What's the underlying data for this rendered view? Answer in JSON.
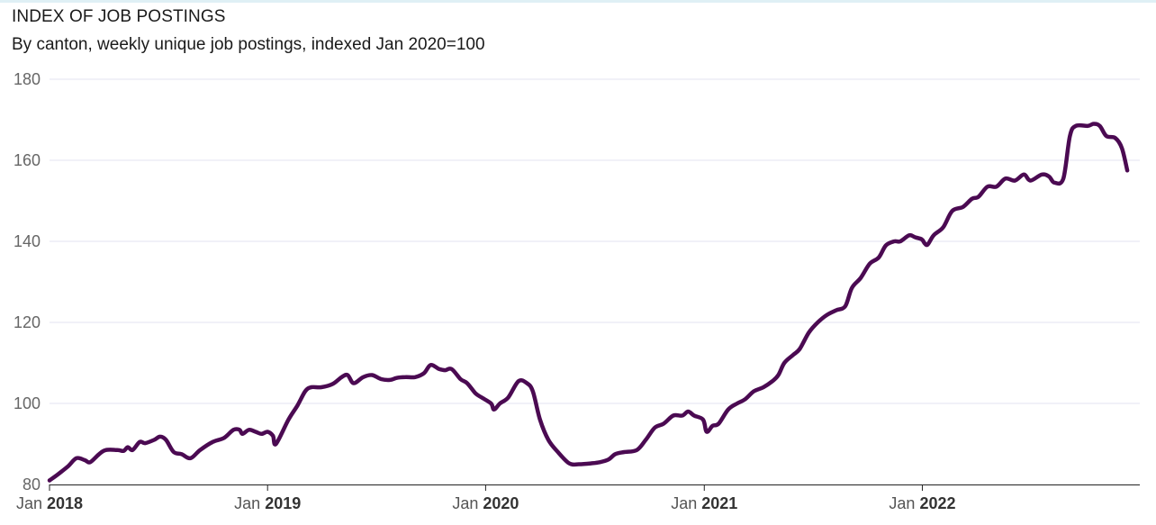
{
  "colors": {
    "line": "#4b0a52",
    "grid": "#e3e3f2",
    "axis": "#222222"
  },
  "chart_data": {
    "type": "line",
    "title": "INDEX OF JOB POSTINGS",
    "subtitle": "By canton, weekly unique job postings, indexed Jan 2020=100",
    "xlabel": "",
    "ylabel": "",
    "ylim": [
      80,
      180
    ],
    "yticks": [
      80,
      100,
      120,
      140,
      160,
      180
    ],
    "xlim": [
      "2018-01-01",
      "2022-12-31"
    ],
    "xticks": [
      {
        "date": "2018-01-01",
        "month": "Jan",
        "year": "2018"
      },
      {
        "date": "2019-01-01",
        "month": "Jan",
        "year": "2019"
      },
      {
        "date": "2020-01-01",
        "month": "Jan",
        "year": "2020"
      },
      {
        "date": "2021-01-01",
        "month": "Jan",
        "year": "2021"
      },
      {
        "date": "2022-01-01",
        "month": "Jan",
        "year": "2022"
      }
    ],
    "grid": true,
    "series": [
      {
        "points": [
          [
            "2018-01-01",
            81
          ],
          [
            "2018-01-15",
            82.5
          ],
          [
            "2018-02-01",
            84.5
          ],
          [
            "2018-02-15",
            86.5
          ],
          [
            "2018-03-01",
            86
          ],
          [
            "2018-03-10",
            85.5
          ],
          [
            "2018-03-25",
            87.5
          ],
          [
            "2018-04-05",
            88.5
          ],
          [
            "2018-04-25",
            88.5
          ],
          [
            "2018-05-05",
            88.3
          ],
          [
            "2018-05-12",
            89.2
          ],
          [
            "2018-05-20",
            88.5
          ],
          [
            "2018-06-01",
            90.5
          ],
          [
            "2018-06-10",
            90.2
          ],
          [
            "2018-06-25",
            91
          ],
          [
            "2018-07-05",
            91.8
          ],
          [
            "2018-07-15",
            91
          ],
          [
            "2018-07-28",
            88
          ],
          [
            "2018-08-10",
            87.5
          ],
          [
            "2018-08-25",
            86.5
          ],
          [
            "2018-09-10",
            88.5
          ],
          [
            "2018-10-01",
            90.5
          ],
          [
            "2018-10-20",
            91.5
          ],
          [
            "2018-11-05",
            93.5
          ],
          [
            "2018-11-15",
            93.5
          ],
          [
            "2018-11-20",
            92.5
          ],
          [
            "2018-12-01",
            93.5
          ],
          [
            "2018-12-12",
            93
          ],
          [
            "2018-12-22",
            92.5
          ],
          [
            "2019-01-01",
            93
          ],
          [
            "2019-01-10",
            92
          ],
          [
            "2019-01-15",
            90
          ],
          [
            "2019-02-05",
            96
          ],
          [
            "2019-02-20",
            99.5
          ],
          [
            "2019-03-05",
            103
          ],
          [
            "2019-03-15",
            104
          ],
          [
            "2019-04-01",
            104
          ],
          [
            "2019-04-20",
            104.8
          ],
          [
            "2019-05-05",
            106.5
          ],
          [
            "2019-05-15",
            107
          ],
          [
            "2019-05-25",
            105
          ],
          [
            "2019-06-10",
            106.5
          ],
          [
            "2019-06-25",
            107
          ],
          [
            "2019-07-10",
            106
          ],
          [
            "2019-07-25",
            105.8
          ],
          [
            "2019-08-05",
            106.3
          ],
          [
            "2019-08-20",
            106.5
          ],
          [
            "2019-09-05",
            106.5
          ],
          [
            "2019-09-20",
            107.5
          ],
          [
            "2019-10-01",
            109.5
          ],
          [
            "2019-10-15",
            108.5
          ],
          [
            "2019-10-25",
            108.2
          ],
          [
            "2019-11-05",
            108.5
          ],
          [
            "2019-11-20",
            106
          ],
          [
            "2019-12-01",
            105
          ],
          [
            "2019-12-15",
            102.5
          ],
          [
            "2019-12-25",
            101.5
          ],
          [
            "2020-01-10",
            100
          ],
          [
            "2020-01-15",
            98.5
          ],
          [
            "2020-01-25",
            100
          ],
          [
            "2020-02-08",
            101.5
          ],
          [
            "2020-02-25",
            105.5
          ],
          [
            "2020-03-10",
            105
          ],
          [
            "2020-03-20",
            103
          ],
          [
            "2020-04-01",
            96
          ],
          [
            "2020-04-15",
            91
          ],
          [
            "2020-05-01",
            88
          ],
          [
            "2020-05-20",
            85.2
          ],
          [
            "2020-06-05",
            85
          ],
          [
            "2020-06-25",
            85.2
          ],
          [
            "2020-07-10",
            85.5
          ],
          [
            "2020-07-25",
            86.2
          ],
          [
            "2020-08-05",
            87.5
          ],
          [
            "2020-08-20",
            88
          ],
          [
            "2020-09-10",
            88.5
          ],
          [
            "2020-09-25",
            91
          ],
          [
            "2020-10-10",
            94
          ],
          [
            "2020-10-25",
            95
          ],
          [
            "2020-11-10",
            97
          ],
          [
            "2020-11-25",
            97
          ],
          [
            "2020-12-05",
            98
          ],
          [
            "2020-12-15",
            97
          ],
          [
            "2020-12-30",
            96
          ],
          [
            "2021-01-05",
            93
          ],
          [
            "2021-01-15",
            94.5
          ],
          [
            "2021-01-25",
            95
          ],
          [
            "2021-02-10",
            98.5
          ],
          [
            "2021-02-25",
            100
          ],
          [
            "2021-03-10",
            101
          ],
          [
            "2021-03-25",
            103
          ],
          [
            "2021-04-10",
            104
          ],
          [
            "2021-04-25",
            105.5
          ],
          [
            "2021-05-05",
            107
          ],
          [
            "2021-05-15",
            110
          ],
          [
            "2021-05-30",
            112
          ],
          [
            "2021-06-10",
            113.5
          ],
          [
            "2021-06-25",
            117.5
          ],
          [
            "2021-07-10",
            120
          ],
          [
            "2021-07-25",
            121.8
          ],
          [
            "2021-08-10",
            123
          ],
          [
            "2021-08-25",
            124
          ],
          [
            "2021-09-05",
            128.5
          ],
          [
            "2021-09-20",
            131
          ],
          [
            "2021-10-05",
            134.5
          ],
          [
            "2021-10-20",
            136
          ],
          [
            "2021-11-01",
            139
          ],
          [
            "2021-11-15",
            140
          ],
          [
            "2021-11-25",
            140
          ],
          [
            "2021-12-10",
            141.5
          ],
          [
            "2021-12-20",
            141
          ],
          [
            "2021-12-31",
            140.5
          ],
          [
            "2022-01-05",
            139.5
          ],
          [
            "2022-01-10",
            139.2
          ],
          [
            "2022-01-20",
            141.5
          ],
          [
            "2022-02-05",
            143.5
          ],
          [
            "2022-02-20",
            147.5
          ],
          [
            "2022-03-10",
            148.5
          ],
          [
            "2022-03-25",
            150.5
          ],
          [
            "2022-04-05",
            151
          ],
          [
            "2022-04-20",
            153.5
          ],
          [
            "2022-05-05",
            153.5
          ],
          [
            "2022-05-20",
            155.5
          ],
          [
            "2022-06-05",
            155
          ],
          [
            "2022-06-20",
            156.5
          ],
          [
            "2022-07-01",
            155
          ],
          [
            "2022-07-20",
            156.5
          ],
          [
            "2022-08-01",
            156
          ],
          [
            "2022-08-10",
            154.5
          ],
          [
            "2022-08-25",
            155.5
          ],
          [
            "2022-09-05",
            166
          ],
          [
            "2022-09-15",
            168.5
          ],
          [
            "2022-10-05",
            168.5
          ],
          [
            "2022-10-15",
            169
          ],
          [
            "2022-10-25",
            168.5
          ],
          [
            "2022-11-05",
            166
          ],
          [
            "2022-11-20",
            165.5
          ],
          [
            "2022-12-01",
            163
          ],
          [
            "2022-12-10",
            157.5
          ]
        ]
      }
    ]
  }
}
